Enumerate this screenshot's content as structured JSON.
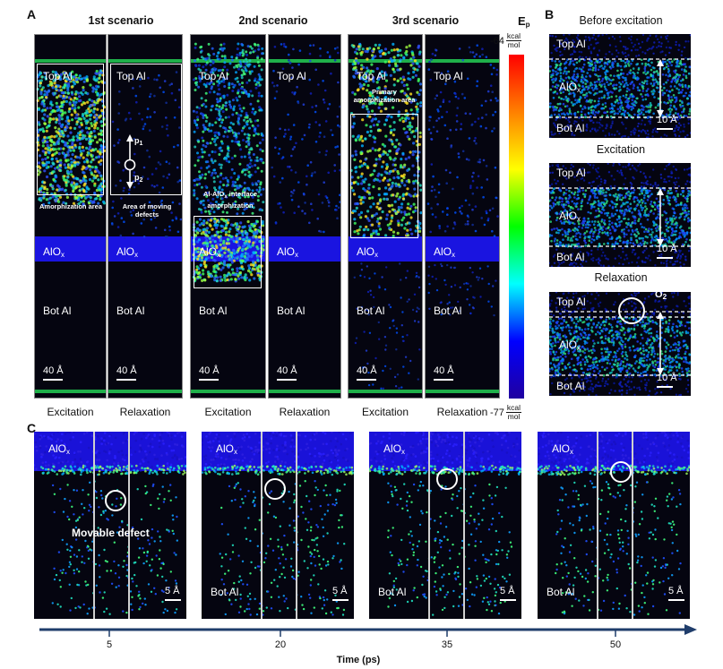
{
  "panel_a": {
    "letter": "A",
    "scenarios": [
      "1st scenario",
      "2nd scenario",
      "3rd scenario"
    ],
    "top_label": "Top Al",
    "oxide_label": "AlO",
    "oxide_sub": "x",
    "bot_label": "Bot Al",
    "scale": "40 Å",
    "foot_excitation": "Excitation",
    "foot_relaxation": "Relaxation",
    "annot_amorph": "Amorphization area",
    "annot_moving": "Area of moving defects",
    "annot_interface": "Al-AlO",
    "annot_interface_sub": "x",
    "annot_interface_tail": " interface amorphization",
    "annot_primary": "Primary amorphization area",
    "p1": "p",
    "p1_sub": "1",
    "p2": "p",
    "p2_sub": "2"
  },
  "colorbar": {
    "title": "E",
    "title_sub": "p",
    "max": "-64",
    "min": "-77",
    "unit_num": "kcal",
    "unit_den": "mol",
    "colors": [
      "#ff0000",
      "#ff8000",
      "#ffff00",
      "#00ff00",
      "#00ffff",
      "#0000ff",
      "#2000a0"
    ]
  },
  "panel_b": {
    "letter": "B",
    "titles": [
      "Before excitation",
      "Excitation",
      "Relaxation"
    ],
    "top_label": "Top Al",
    "oxide_label": "AlO",
    "oxide_sub": "x",
    "bot_label": "Bot Al",
    "scale": "10 Å",
    "o2": "O",
    "o2_sub": "2"
  },
  "panel_c": {
    "letter": "C",
    "oxide_label": "AlO",
    "oxide_sub": "x",
    "bot_label": "Bot Al",
    "defect_label": "Movable defect",
    "scale": "5 Å",
    "times": [
      "5",
      "20",
      "35",
      "50"
    ],
    "axis_label": "Time (ps)",
    "axis_color": "#1f3d6b"
  }
}
